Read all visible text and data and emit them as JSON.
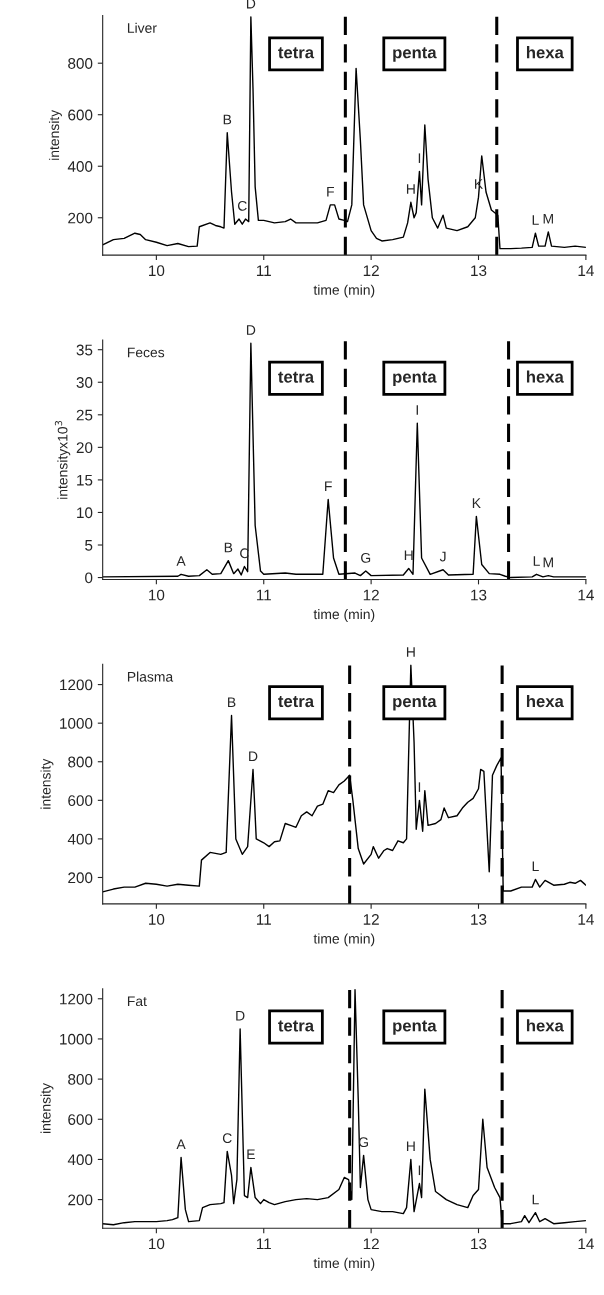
{
  "chart_data": [
    {
      "type": "line",
      "title": "Liver",
      "xlabel": "time (min)",
      "ylabel": "intensity",
      "xlim": [
        9.5,
        14
      ],
      "xticks": [
        10,
        11,
        12,
        13,
        14
      ],
      "ylim": [
        55,
        985
      ],
      "yticks": [
        200,
        400,
        600,
        800
      ],
      "x": [
        9.5,
        9.6,
        9.7,
        9.8,
        9.85,
        9.9,
        10.0,
        10.1,
        10.2,
        10.3,
        10.38,
        10.4,
        10.5,
        10.55,
        10.6,
        10.63,
        10.66,
        10.7,
        10.73,
        10.77,
        10.8,
        10.83,
        10.86,
        10.88,
        10.9,
        10.92,
        10.95,
        11.0,
        11.1,
        11.2,
        11.25,
        11.3,
        11.4,
        11.5,
        11.58,
        11.62,
        11.66,
        11.7,
        11.75,
        11.78,
        11.82,
        11.86,
        11.9,
        11.93,
        12.0,
        12.05,
        12.1,
        12.2,
        12.3,
        12.34,
        12.37,
        12.4,
        12.42,
        12.45,
        12.47,
        12.5,
        12.53,
        12.57,
        12.62,
        12.67,
        12.7,
        12.8,
        12.9,
        12.97,
        13.0,
        13.03,
        13.07,
        13.12,
        13.18,
        13.2,
        13.3,
        13.4,
        13.5,
        13.53,
        13.56,
        13.62,
        13.65,
        13.68,
        13.8,
        13.9,
        14.0
      ],
      "series": [
        {
          "color": "#000000",
          "values": [
            95,
            115,
            120,
            140,
            135,
            115,
            105,
            92,
            100,
            88,
            90,
            165,
            180,
            170,
            165,
            160,
            530,
            300,
            175,
            195,
            175,
            195,
            185,
            980,
            700,
            320,
            190,
            190,
            180,
            185,
            195,
            180,
            180,
            180,
            190,
            250,
            250,
            195,
            190,
            185,
            250,
            780,
            500,
            250,
            150,
            120,
            110,
            115,
            125,
            180,
            260,
            200,
            220,
            380,
            250,
            560,
            350,
            200,
            160,
            210,
            160,
            150,
            165,
            200,
            280,
            440,
            300,
            230,
            210,
            80,
            80,
            82,
            85,
            140,
            90,
            90,
            145,
            90,
            85,
            90,
            85
          ]
        }
      ],
      "ref_lines": [
        {
          "axis": "x",
          "value": 11.76,
          "line_style": "dashed",
          "color": "#000000"
        },
        {
          "axis": "x",
          "value": 13.17,
          "line_style": "dashed",
          "color": "#000000"
        }
      ],
      "annotations": [
        "tetra",
        "penta",
        "hexa",
        {
          "text": "B",
          "x": 10.66,
          "y": 530
        },
        {
          "text": "C",
          "x": 10.8,
          "y": 195
        },
        {
          "text": "D",
          "x": 10.88,
          "y": 980
        },
        {
          "text": "F",
          "x": 11.62,
          "y": 250
        },
        {
          "text": "H",
          "x": 12.37,
          "y": 260
        },
        {
          "text": "I",
          "x": 12.45,
          "y": 380
        },
        {
          "text": "K",
          "x": 13.0,
          "y": 280
        },
        {
          "text": "L",
          "x": 13.53,
          "y": 140
        },
        {
          "text": "M",
          "x": 13.65,
          "y": 145
        }
      ]
    },
    {
      "type": "line",
      "title": "Feces",
      "xlabel": "time (min)",
      "ylabel": "intensityx10$^{3}$",
      "xlim": [
        9.5,
        14
      ],
      "xticks": [
        10,
        11,
        12,
        13,
        14
      ],
      "ylim": [
        -0.3,
        36.5
      ],
      "yticks": [
        0,
        5,
        10,
        15,
        20,
        25,
        30,
        35
      ],
      "x": [
        9.5,
        10.2,
        10.23,
        10.3,
        10.4,
        10.47,
        10.52,
        10.6,
        10.67,
        10.72,
        10.76,
        10.79,
        10.82,
        10.85,
        10.88,
        10.92,
        10.97,
        11.0,
        11.2,
        11.3,
        11.55,
        11.6,
        11.65,
        11.7,
        11.85,
        11.9,
        11.95,
        12.0,
        12.3,
        12.35,
        12.39,
        12.43,
        12.47,
        12.55,
        12.67,
        12.72,
        12.95,
        12.98,
        13.03,
        13.1,
        13.2,
        13.25,
        13.3,
        13.5,
        13.54,
        13.6,
        13.65,
        13.7,
        14.0
      ],
      "series": [
        {
          "color": "#000000",
          "values": [
            0.1,
            0.2,
            0.5,
            0.2,
            0.3,
            1.2,
            0.5,
            0.6,
            2.6,
            0.6,
            1.3,
            0.4,
            1.7,
            0.9,
            36,
            8,
            1,
            0.5,
            0.7,
            0.5,
            0.5,
            12,
            3,
            0.5,
            0.7,
            0.3,
            1.0,
            0.3,
            0.4,
            1.4,
            0.5,
            23.7,
            3,
            0.5,
            1.2,
            0.4,
            0.5,
            9.4,
            2,
            0.6,
            0.5,
            0.2,
            0.0,
            0.1,
            0.5,
            0.1,
            0.3,
            0.1,
            0.1
          ]
        }
      ],
      "ref_lines": [
        {
          "axis": "x",
          "value": 11.76,
          "line_style": "dashed",
          "color": "#000000"
        },
        {
          "axis": "x",
          "value": 13.28,
          "line_style": "dashed",
          "color": "#000000"
        }
      ],
      "annotations": [
        "tetra",
        "penta",
        "hexa",
        {
          "text": "A",
          "x": 10.23,
          "y": 0.5
        },
        {
          "text": "B",
          "x": 10.67,
          "y": 2.6
        },
        {
          "text": "C",
          "x": 10.82,
          "y": 1.7
        },
        {
          "text": "D",
          "x": 10.88,
          "y": 36
        },
        {
          "text": "F",
          "x": 11.6,
          "y": 12
        },
        {
          "text": "G",
          "x": 11.95,
          "y": 1.0
        },
        {
          "text": "H",
          "x": 12.35,
          "y": 1.4
        },
        {
          "text": "I",
          "x": 12.43,
          "y": 23.7
        },
        {
          "text": "J",
          "x": 12.67,
          "y": 1.2
        },
        {
          "text": "K",
          "x": 12.98,
          "y": 9.4
        },
        {
          "text": "L",
          "x": 13.54,
          "y": 0.5
        },
        {
          "text": "M",
          "x": 13.65,
          "y": 0.3
        }
      ]
    },
    {
      "type": "line",
      "title": "Plasma",
      "xlabel": "time (min)",
      "ylabel": "intensity",
      "xlim": [
        9.5,
        14
      ],
      "xticks": [
        10,
        11,
        12,
        13,
        14
      ],
      "ylim": [
        63,
        1305
      ],
      "yticks": [
        200,
        400,
        600,
        800,
        1000,
        1200
      ],
      "x": [
        9.5,
        9.6,
        9.7,
        9.8,
        9.9,
        10.0,
        10.1,
        10.2,
        10.3,
        10.4,
        10.42,
        10.5,
        10.6,
        10.65,
        10.7,
        10.74,
        10.8,
        10.85,
        10.9,
        10.93,
        11.0,
        11.05,
        11.1,
        11.15,
        11.2,
        11.25,
        11.3,
        11.35,
        11.4,
        11.45,
        11.5,
        11.55,
        11.6,
        11.65,
        11.7,
        11.75,
        11.8,
        11.83,
        11.88,
        11.93,
        12.0,
        12.02,
        12.07,
        12.12,
        12.15,
        12.2,
        12.25,
        12.3,
        12.33,
        12.37,
        12.4,
        12.42,
        12.45,
        12.48,
        12.5,
        12.53,
        12.6,
        12.65,
        12.68,
        12.72,
        12.8,
        12.85,
        12.9,
        12.95,
        13.0,
        13.02,
        13.05,
        13.1,
        13.13,
        13.17,
        13.21,
        13.23,
        13.3,
        13.4,
        13.5,
        13.53,
        13.57,
        13.62,
        13.7,
        13.8,
        13.85,
        13.9,
        13.95,
        14.0
      ],
      "series": [
        {
          "color": "#000000",
          "values": [
            125,
            140,
            150,
            150,
            170,
            165,
            155,
            165,
            160,
            155,
            290,
            330,
            320,
            330,
            1040,
            400,
            320,
            360,
            760,
            400,
            380,
            360,
            385,
            390,
            480,
            470,
            460,
            520,
            540,
            520,
            570,
            580,
            650,
            640,
            680,
            700,
            730,
            600,
            350,
            270,
            320,
            360,
            300,
            340,
            350,
            340,
            390,
            380,
            400,
            1300,
            900,
            450,
            600,
            440,
            650,
            470,
            480,
            500,
            560,
            510,
            520,
            560,
            590,
            610,
            660,
            760,
            750,
            230,
            730,
            780,
            820,
            130,
            130,
            150,
            150,
            190,
            150,
            185,
            160,
            165,
            175,
            170,
            185,
            160
          ]
        }
      ],
      "ref_lines": [
        {
          "axis": "x",
          "value": 11.8,
          "line_style": "dashed",
          "color": "#000000"
        },
        {
          "axis": "x",
          "value": 13.22,
          "line_style": "dashed",
          "color": "#000000"
        }
      ],
      "annotations": [
        "tetra",
        "penta",
        "hexa",
        {
          "text": "B",
          "x": 10.7,
          "y": 1040
        },
        {
          "text": "D",
          "x": 10.9,
          "y": 760
        },
        {
          "text": "H",
          "x": 12.37,
          "y": 1300
        },
        {
          "text": "I",
          "x": 12.45,
          "y": 600
        },
        {
          "text": "L",
          "x": 13.53,
          "y": 190
        }
      ]
    },
    {
      "type": "line",
      "title": "Fat",
      "xlabel": "time (min)",
      "ylabel": "intensity",
      "xlim": [
        9.5,
        14
      ],
      "xticks": [
        10,
        11,
        12,
        13,
        14
      ],
      "ylim": [
        57,
        1250
      ],
      "yticks": [
        200,
        400,
        600,
        800,
        1000,
        1200
      ],
      "x": [
        9.5,
        9.6,
        9.7,
        9.8,
        9.9,
        10.0,
        10.1,
        10.15,
        10.2,
        10.23,
        10.27,
        10.3,
        10.4,
        10.43,
        10.5,
        10.6,
        10.63,
        10.66,
        10.7,
        10.72,
        10.75,
        10.78,
        10.82,
        10.85,
        10.88,
        10.92,
        10.97,
        11.0,
        11.05,
        11.1,
        11.2,
        11.3,
        11.4,
        11.5,
        11.6,
        11.7,
        11.75,
        11.79,
        11.82,
        11.85,
        11.88,
        11.9,
        11.93,
        11.97,
        12.0,
        12.1,
        12.2,
        12.3,
        12.33,
        12.37,
        12.4,
        12.45,
        12.47,
        12.5,
        12.55,
        12.6,
        12.7,
        12.8,
        12.9,
        12.95,
        13.0,
        13.04,
        13.08,
        13.15,
        13.2,
        13.22,
        13.3,
        13.4,
        13.43,
        13.47,
        13.53,
        13.57,
        13.62,
        13.7,
        13.8,
        13.9,
        14.0
      ],
      "series": [
        {
          "color": "#000000",
          "values": [
            80,
            75,
            85,
            90,
            90,
            90,
            95,
            100,
            110,
            410,
            150,
            90,
            95,
            160,
            175,
            180,
            185,
            440,
            320,
            180,
            300,
            1050,
            220,
            210,
            360,
            210,
            180,
            200,
            185,
            175,
            190,
            200,
            205,
            200,
            210,
            250,
            310,
            300,
            200,
            1245,
            700,
            260,
            420,
            200,
            150,
            140,
            140,
            130,
            160,
            400,
            140,
            280,
            210,
            750,
            400,
            240,
            200,
            175,
            160,
            220,
            250,
            600,
            360,
            260,
            210,
            80,
            80,
            90,
            120,
            85,
            135,
            90,
            105,
            80,
            85,
            90,
            95
          ]
        }
      ],
      "ref_lines": [
        {
          "axis": "x",
          "value": 11.8,
          "line_style": "dashed",
          "color": "#000000"
        },
        {
          "axis": "x",
          "value": 13.22,
          "line_style": "dashed",
          "color": "#000000"
        }
      ],
      "annotations": [
        "tetra",
        "penta",
        "hexa",
        {
          "text": "A",
          "x": 10.23,
          "y": 410
        },
        {
          "text": "C",
          "x": 10.66,
          "y": 440
        },
        {
          "text": "D",
          "x": 10.78,
          "y": 1050
        },
        {
          "text": "E",
          "x": 10.88,
          "y": 360
        },
        {
          "text": "G",
          "x": 11.93,
          "y": 420
        },
        {
          "text": "H",
          "x": 12.37,
          "y": 400
        },
        {
          "text": "I",
          "x": 12.45,
          "y": 280
        },
        {
          "text": "L",
          "x": 13.53,
          "y": 135
        }
      ]
    }
  ]
}
